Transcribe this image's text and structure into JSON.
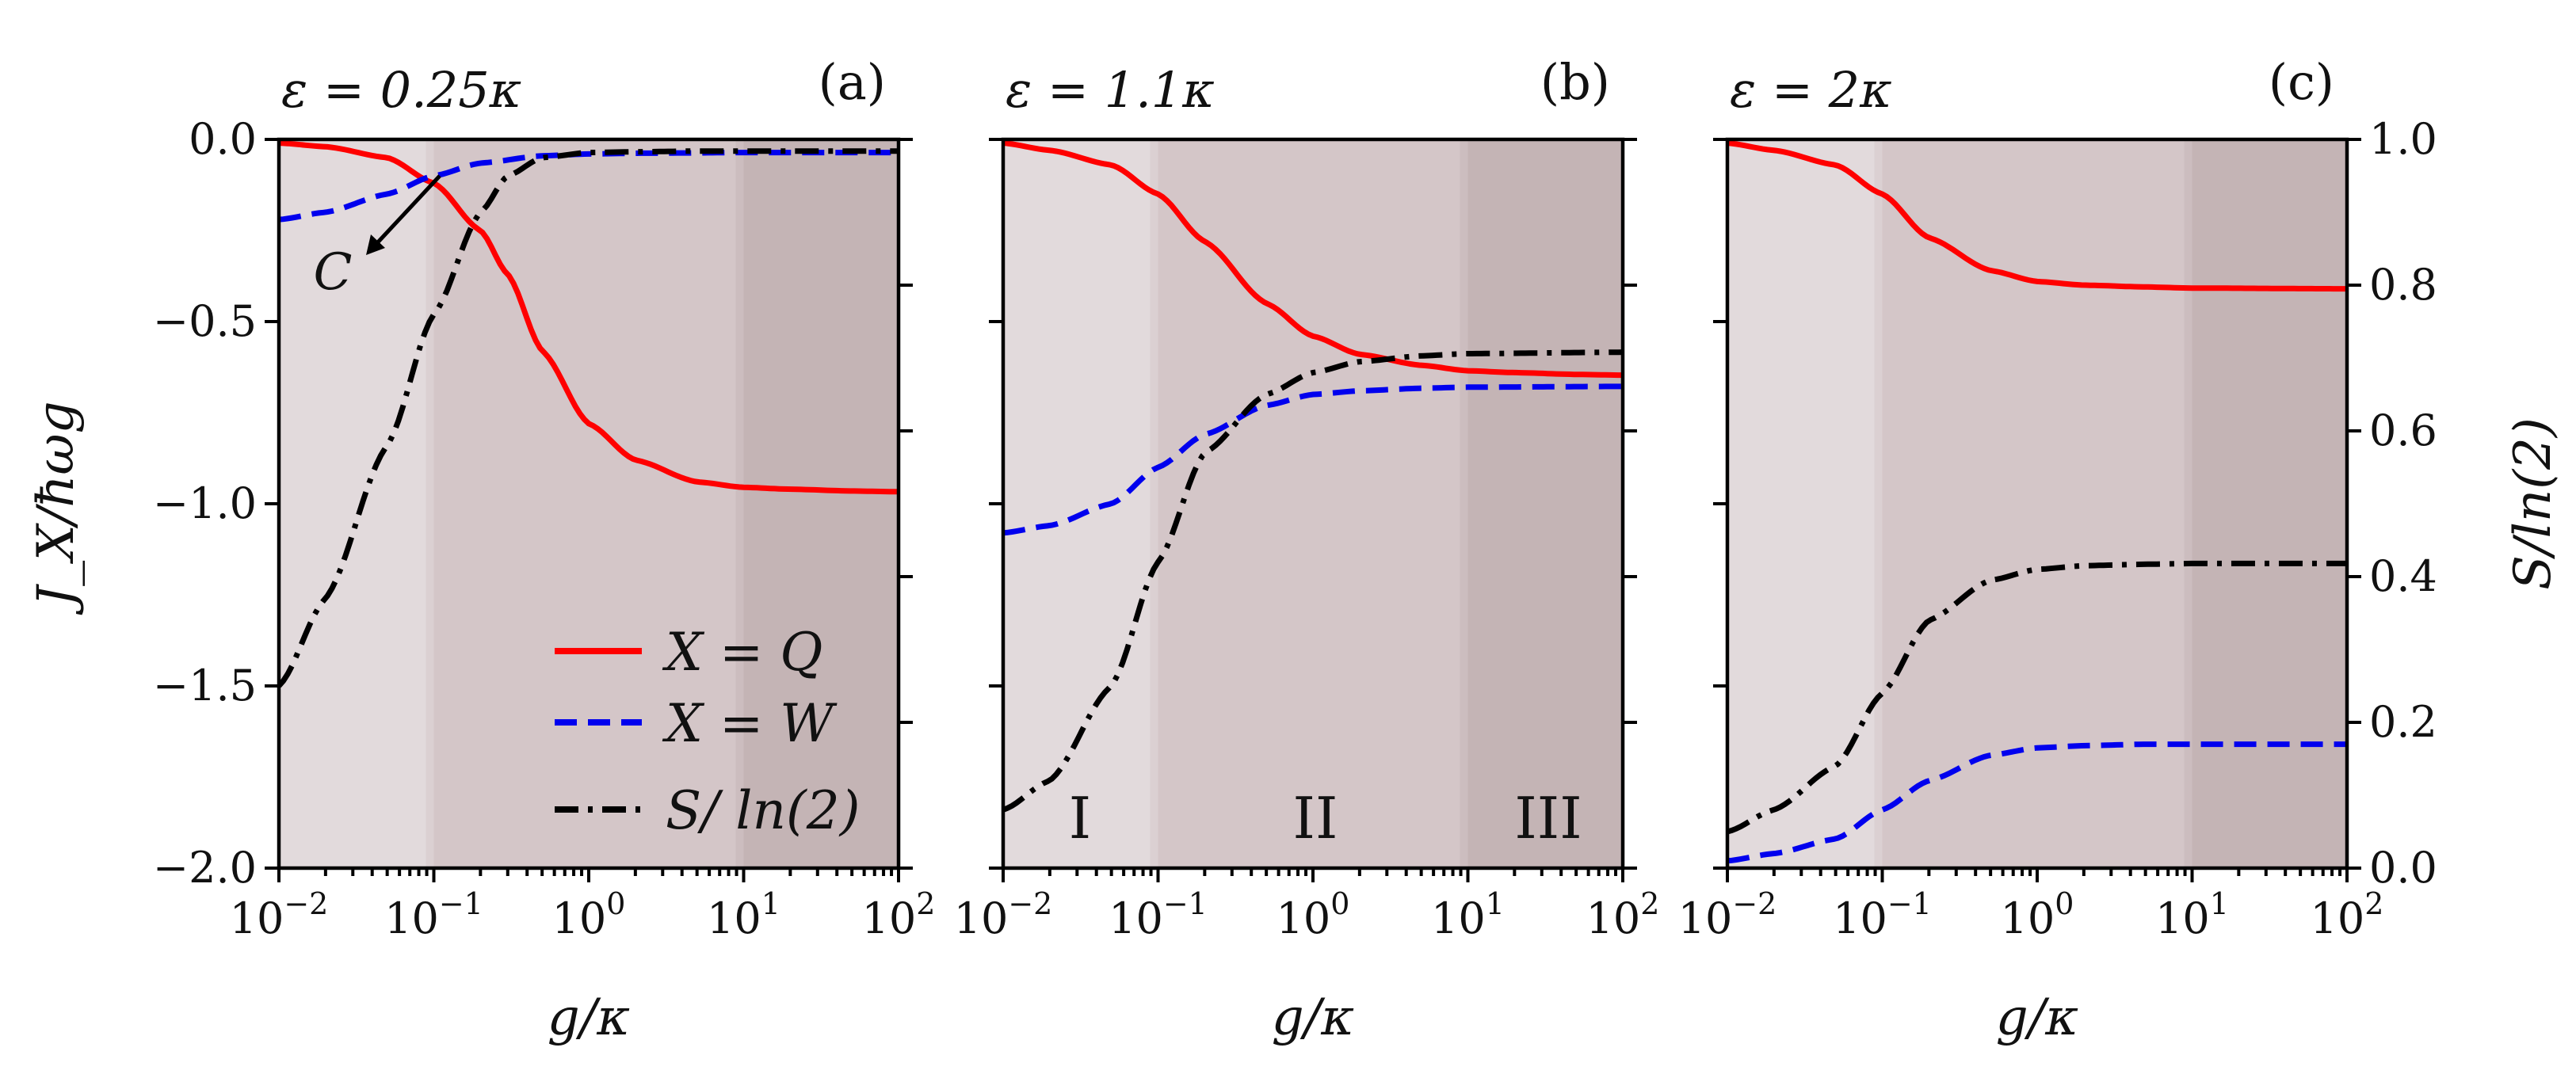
{
  "colors": {
    "Q": "#ff0000",
    "W": "#0000ee",
    "S": "#000000",
    "region_I": "#e2dadc",
    "region_II": "#d4c6c8",
    "region_III": "#c4b4b5",
    "arrow": "#000000"
  },
  "labels": {
    "ylabel_left": "J_X/ħωg",
    "ylabel_right": "S/ln(2)",
    "xlabel": "g/κ",
    "xlabel_parts": {
      "main": "g/κ"
    },
    "ylabel_left_parts": {
      "J": "J",
      "sub": "X",
      "rest": "/ħωg"
    },
    "ylabel_right_parts": {
      "S": "S",
      "rest": "/ ln(2)"
    },
    "annotation_C": "C",
    "region_I": "I",
    "region_II": "II",
    "region_III": "III"
  },
  "legend": [
    {
      "key": "Q",
      "label": "X = Q",
      "style": "solid"
    },
    {
      "key": "W",
      "label": "X = W",
      "style": "dashed"
    },
    {
      "key": "S",
      "label": "S/ ln(2)",
      "style": "dashdot"
    }
  ],
  "chart_data": [
    {
      "type": "line",
      "panel": "(a)",
      "title": "ε = 0.25κ",
      "xscale": "log",
      "xlim": [
        0.01,
        100
      ],
      "ylim_left": [
        -2.0,
        0.0
      ],
      "ylim_right": [
        0.0,
        1.0
      ],
      "left_ticks": [
        "0.0",
        "−0.5",
        "−1.0",
        "−1.5",
        "−2.0"
      ],
      "x_ticks": [
        "10^-2",
        "10^-1",
        "10^0",
        "10^1",
        "10^2"
      ],
      "regions": [
        {
          "name": "I",
          "xrange": [
            0.01,
            0.1
          ]
        },
        {
          "name": "II",
          "xrange": [
            0.1,
            10
          ]
        },
        {
          "name": "III",
          "xrange": [
            10,
            100
          ]
        }
      ],
      "series": [
        {
          "name": "X = Q",
          "axis": "left",
          "x": [
            0.01,
            0.02,
            0.05,
            0.1,
            0.2,
            0.3,
            0.5,
            1,
            2,
            5,
            10,
            20,
            50,
            100
          ],
          "values": [
            -0.01,
            -0.02,
            -0.05,
            -0.12,
            -0.25,
            -0.37,
            -0.58,
            -0.78,
            -0.88,
            -0.94,
            -0.955,
            -0.96,
            -0.965,
            -0.967
          ]
        },
        {
          "name": "X = W",
          "axis": "left",
          "x": [
            0.01,
            0.02,
            0.05,
            0.1,
            0.2,
            0.5,
            1,
            2,
            5,
            10,
            100
          ],
          "values": [
            -0.22,
            -0.2,
            -0.15,
            -0.1,
            -0.065,
            -0.045,
            -0.04,
            -0.038,
            -0.037,
            -0.036,
            -0.036
          ]
        },
        {
          "name": "S/ln(2)",
          "axis": "right",
          "x": [
            0.01,
            0.02,
            0.05,
            0.1,
            0.2,
            0.3,
            0.5,
            1,
            2,
            5,
            100
          ],
          "values": [
            0.25,
            0.37,
            0.58,
            0.76,
            0.9,
            0.95,
            0.975,
            0.982,
            0.983,
            0.984,
            0.984
          ]
        }
      ]
    },
    {
      "type": "line",
      "panel": "(b)",
      "title": "ε = 1.1κ",
      "xscale": "log",
      "xlim": [
        0.01,
        100
      ],
      "ylim_left": [
        -2.0,
        0.0
      ],
      "ylim_right": [
        0.0,
        1.0
      ],
      "x_ticks": [
        "10^-2",
        "10^-1",
        "10^0",
        "10^1",
        "10^2"
      ],
      "regions": [
        {
          "name": "I",
          "xrange": [
            0.01,
            0.1
          ]
        },
        {
          "name": "II",
          "xrange": [
            0.1,
            10
          ]
        },
        {
          "name": "III",
          "xrange": [
            10,
            100
          ]
        }
      ],
      "series": [
        {
          "name": "X = Q",
          "axis": "left",
          "x": [
            0.01,
            0.02,
            0.05,
            0.1,
            0.2,
            0.5,
            1,
            2,
            5,
            10,
            20,
            50,
            100
          ],
          "values": [
            -0.01,
            -0.03,
            -0.07,
            -0.15,
            -0.28,
            -0.45,
            -0.54,
            -0.59,
            -0.62,
            -0.635,
            -0.64,
            -0.645,
            -0.647
          ]
        },
        {
          "name": "X = W",
          "axis": "left",
          "x": [
            0.01,
            0.02,
            0.05,
            0.1,
            0.2,
            0.5,
            1,
            2,
            5,
            10,
            100
          ],
          "values": [
            -1.08,
            -1.06,
            -1.0,
            -0.9,
            -0.81,
            -0.73,
            -0.7,
            -0.69,
            -0.683,
            -0.68,
            -0.678
          ]
        },
        {
          "name": "S/ln(2)",
          "axis": "right",
          "x": [
            0.01,
            0.02,
            0.05,
            0.1,
            0.2,
            0.5,
            1,
            2,
            5,
            10,
            100
          ],
          "values": [
            0.08,
            0.12,
            0.25,
            0.42,
            0.57,
            0.65,
            0.68,
            0.695,
            0.703,
            0.706,
            0.708
          ]
        }
      ]
    },
    {
      "type": "line",
      "panel": "(c)",
      "title": "ε = 2κ",
      "xscale": "log",
      "xlim": [
        0.01,
        100
      ],
      "ylim_left": [
        -2.0,
        0.0
      ],
      "ylim_right": [
        0.0,
        1.0
      ],
      "right_ticks": [
        "1.0",
        "0.8",
        "0.6",
        "0.4",
        "0.2",
        "0.0"
      ],
      "x_ticks": [
        "10^-2",
        "10^-1",
        "10^0",
        "10^1",
        "10^2"
      ],
      "regions": [
        {
          "name": "I",
          "xrange": [
            0.01,
            0.1
          ]
        },
        {
          "name": "II",
          "xrange": [
            0.1,
            10
          ]
        },
        {
          "name": "III",
          "xrange": [
            10,
            100
          ]
        }
      ],
      "series": [
        {
          "name": "X = Q",
          "axis": "left",
          "x": [
            0.01,
            0.02,
            0.05,
            0.1,
            0.2,
            0.5,
            1,
            2,
            5,
            10,
            100
          ],
          "values": [
            -0.01,
            -0.03,
            -0.07,
            -0.15,
            -0.27,
            -0.36,
            -0.39,
            -0.4,
            -0.405,
            -0.408,
            -0.41
          ]
        },
        {
          "name": "X = W",
          "axis": "right",
          "x": [
            0.01,
            0.02,
            0.05,
            0.1,
            0.2,
            0.5,
            1,
            2,
            5,
            10,
            100
          ],
          "values": [
            0.01,
            0.02,
            0.04,
            0.08,
            0.12,
            0.155,
            0.165,
            0.168,
            0.17,
            0.17,
            0.17
          ]
        },
        {
          "name": "S/ln(2)",
          "axis": "right",
          "x": [
            0.01,
            0.02,
            0.05,
            0.1,
            0.2,
            0.5,
            1,
            2,
            5,
            10,
            100
          ],
          "values": [
            0.05,
            0.08,
            0.14,
            0.24,
            0.34,
            0.395,
            0.41,
            0.415,
            0.417,
            0.418,
            0.418
          ]
        }
      ]
    }
  ]
}
